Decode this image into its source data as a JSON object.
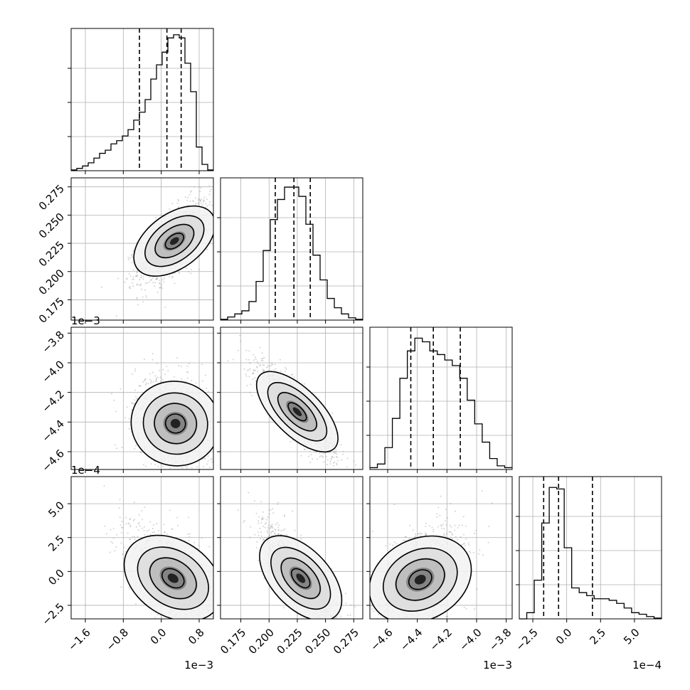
{
  "chart_data": {
    "type": "corner",
    "parameters": [
      {
        "index": 0,
        "offset_label": "1e−3",
        "ticks": [
          -1.6,
          -0.8,
          0.0,
          0.8
        ],
        "tick_labels": [
          "−1.6",
          "−0.8",
          "0.0",
          "0.8"
        ],
        "range": [
          -1.9,
          1.1
        ],
        "quantiles": [
          -0.46,
          0.12,
          0.42
        ],
        "hist": [
          0.5,
          1.5,
          3,
          5,
          8,
          11,
          13,
          17,
          19,
          22,
          26,
          32,
          37,
          45,
          58,
          67,
          75,
          84,
          86,
          84,
          68,
          50,
          15,
          4,
          0.5
        ],
        "hist_max": 90,
        "mean": [
          0.25,
          0.0002
        ],
        "cov": [
          [
            0.16,
            0.0
          ],
          [
            0.0,
            0.0001
          ]
        ]
      },
      {
        "index": 1,
        "offset_label": "",
        "ticks": [
          0.175,
          0.2,
          0.225,
          0.25,
          0.275
        ],
        "tick_labels": [
          "0.175",
          "0.200",
          "0.225",
          "0.250",
          "0.275"
        ],
        "range": [
          0.157,
          0.283
        ],
        "quantiles": [
          0.2055,
          0.222,
          0.2365
        ],
        "hist": [
          0.5,
          2,
          4,
          6,
          12,
          25,
          45,
          65,
          78,
          86,
          86,
          80,
          62,
          42,
          26,
          14,
          8,
          4,
          1.5,
          0.5
        ],
        "hist_max": 92
      },
      {
        "index": 2,
        "offset_label": "1e−3",
        "ticks": [
          -4.6,
          -4.4,
          -4.2,
          -4.0,
          -3.8
        ],
        "tick_labels": [
          "−4.6",
          "−4.4",
          "−4.2",
          "−4.0",
          "−3.8"
        ],
        "range": [
          -4.72,
          -3.76
        ],
        "quantiles": [
          -4.444,
          -4.292,
          -4.11
        ],
        "hist": [
          1,
          3,
          12,
          28,
          50,
          65,
          72,
          70,
          65,
          63,
          60,
          57,
          50,
          38,
          25,
          15,
          6,
          2,
          1
        ],
        "hist_max": 78
      },
      {
        "index": 3,
        "offset_label": "1e−4",
        "ticks": [
          -2.5,
          0.0,
          2.5,
          5.0
        ],
        "tick_labels": [
          "−2.5",
          "0.0",
          "2.5",
          "5.0"
        ],
        "range": [
          -3.5,
          7.0
        ],
        "quantiles": [
          -1.7,
          -0.6,
          1.9
        ],
        "hist": [
          0,
          4,
          25,
          62,
          85,
          84,
          46,
          20,
          17,
          15,
          13,
          13,
          12,
          10,
          7,
          4,
          3,
          1.5,
          0.5
        ],
        "hist_max": 92
      }
    ],
    "pairs": [
      {
        "row": 1,
        "col": 0,
        "mode_x": 0.28,
        "mode_y": 0.227,
        "corr": 0.65,
        "sx": 0.38,
        "sy": 0.018
      },
      {
        "row": 2,
        "col": 0,
        "mode_x": 0.3,
        "mode_y": -4.41,
        "corr": -0.25,
        "sx": 0.42,
        "sy": 0.16
      },
      {
        "row": 2,
        "col": 1,
        "mode_x": 0.225,
        "mode_y": -4.33,
        "corr": -0.85,
        "sx": 0.017,
        "sy": 0.15
      },
      {
        "row": 3,
        "col": 0,
        "mode_x": 0.25,
        "mode_y": -0.5,
        "corr": -0.55,
        "sx": 0.45,
        "sy": 1.9
      },
      {
        "row": 3,
        "col": 1,
        "mode_x": 0.228,
        "mode_y": -0.5,
        "corr": -0.8,
        "sx": 0.017,
        "sy": 1.9
      },
      {
        "row": 3,
        "col": 2,
        "mode_x": -4.38,
        "mode_y": -0.6,
        "corr": 0.45,
        "sx": 0.15,
        "sy": 1.9
      }
    ],
    "grid": true,
    "colors": {
      "hist": "#000000",
      "points": "#9e9e9e",
      "grid": "#b0b0b0",
      "contour": "#000000"
    }
  }
}
